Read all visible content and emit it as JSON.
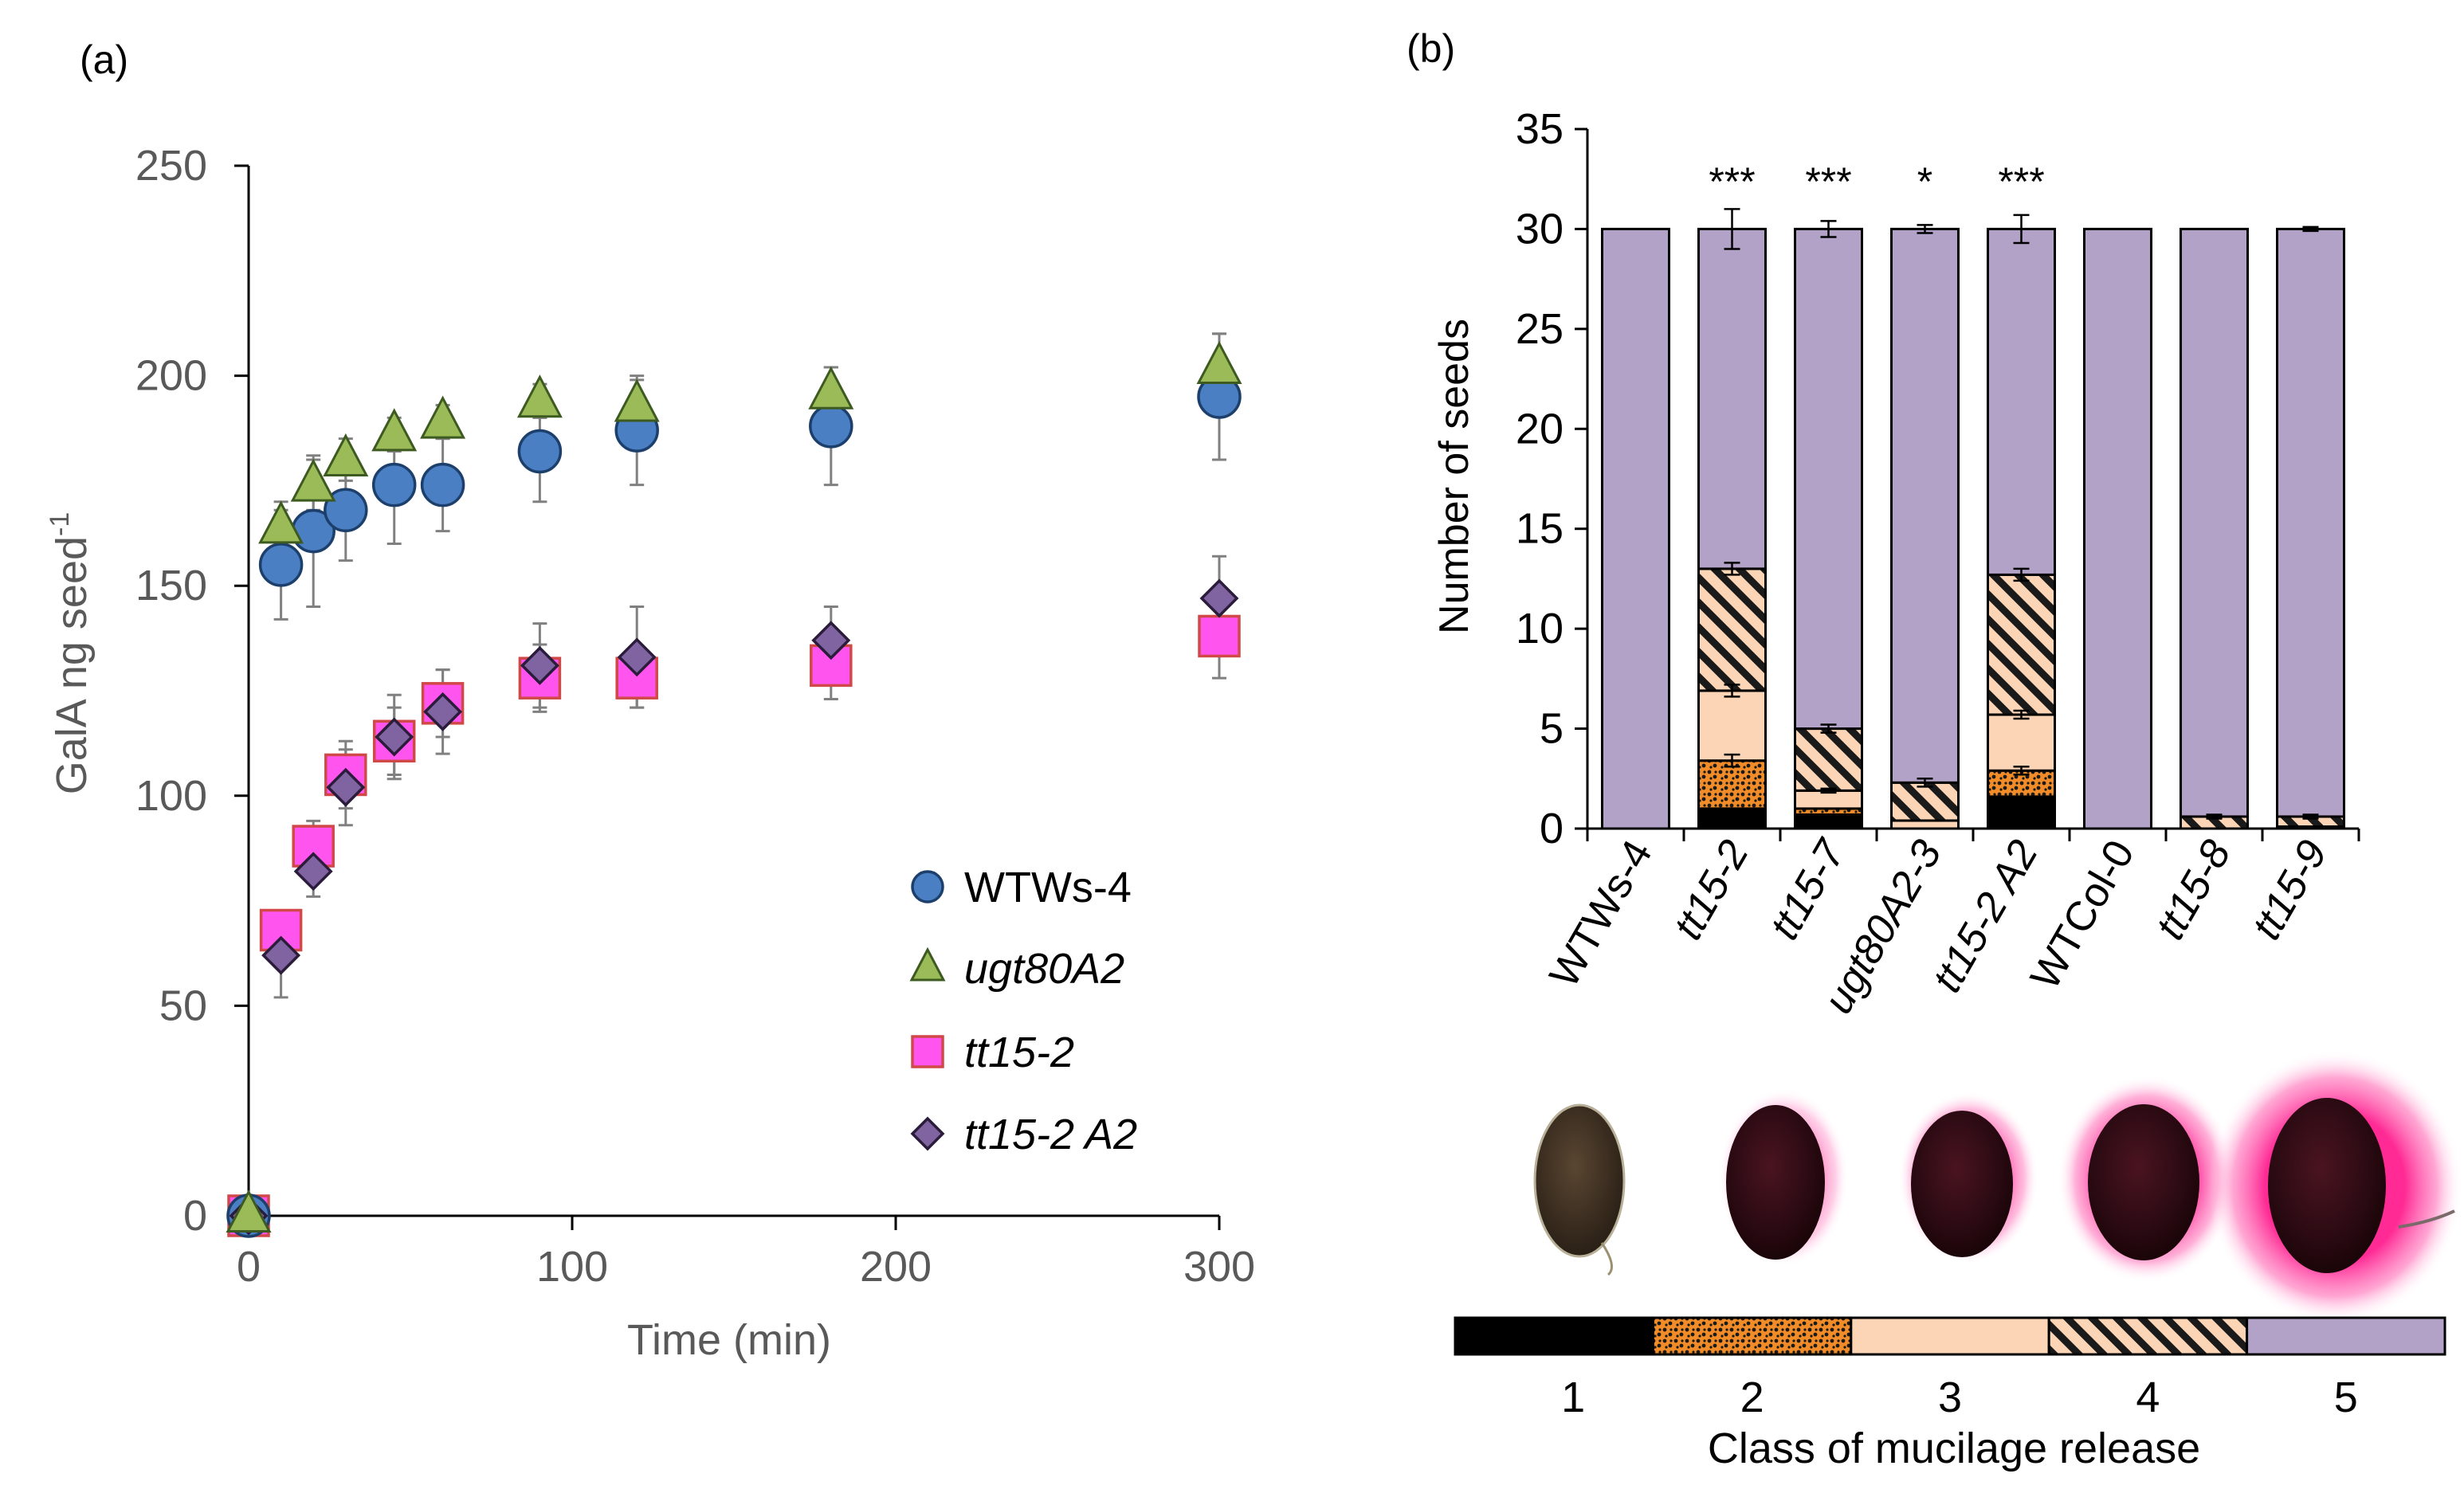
{
  "chart_data": [
    {
      "type": "scatter",
      "panel_label": "(a)",
      "xlabel": "Time (min)",
      "ylabel": "GalA ng seed",
      "ylabel_superscript": "-1",
      "xlim": [
        0,
        300
      ],
      "ylim": [
        0,
        250
      ],
      "xticks": [
        "0",
        "100",
        "200",
        "300"
      ],
      "yticks": [
        "0",
        "50",
        "100",
        "150",
        "200",
        "250"
      ],
      "legend_position": "bottom-right",
      "series": [
        {
          "name": "WTWs-4",
          "italic": false,
          "marker": "circle",
          "fill": "#4a7fc4",
          "stroke": "#1c3f6b",
          "points": [
            {
              "x": 0,
              "y": 0,
              "err": 0
            },
            {
              "x": 10,
              "y": 155,
              "err": 13
            },
            {
              "x": 20,
              "y": 163,
              "err": 18
            },
            {
              "x": 30,
              "y": 168,
              "err": 12
            },
            {
              "x": 45,
              "y": 174,
              "err": 14
            },
            {
              "x": 60,
              "y": 174,
              "err": 11
            },
            {
              "x": 90,
              "y": 182,
              "err": 12
            },
            {
              "x": 120,
              "y": 187,
              "err": 13
            },
            {
              "x": 180,
              "y": 188,
              "err": 14
            },
            {
              "x": 300,
              "y": 195,
              "err": 15
            }
          ]
        },
        {
          "name": "ugt80A2",
          "italic": true,
          "marker": "triangle",
          "fill": "#9bbb59",
          "stroke": "#3d5a20",
          "points": [
            {
              "x": 0,
              "y": 0,
              "err": 0
            },
            {
              "x": 10,
              "y": 164,
              "err": 6
            },
            {
              "x": 20,
              "y": 174,
              "err": 6
            },
            {
              "x": 30,
              "y": 180,
              "err": 5
            },
            {
              "x": 45,
              "y": 186,
              "err": 4
            },
            {
              "x": 60,
              "y": 189,
              "err": 4
            },
            {
              "x": 90,
              "y": 194,
              "err": 4
            },
            {
              "x": 120,
              "y": 193,
              "err": 6
            },
            {
              "x": 180,
              "y": 196,
              "err": 6
            },
            {
              "x": 300,
              "y": 202,
              "err": 8
            }
          ]
        },
        {
          "name": "tt15-2",
          "italic": true,
          "marker": "square",
          "fill": "#ff55ee",
          "stroke": "#d04848",
          "points": [
            {
              "x": 0,
              "y": 0,
              "err": 0
            },
            {
              "x": 10,
              "y": 68,
              "err": 0
            },
            {
              "x": 20,
              "y": 88,
              "err": 6
            },
            {
              "x": 30,
              "y": 105,
              "err": 8
            },
            {
              "x": 45,
              "y": 113,
              "err": 8
            },
            {
              "x": 60,
              "y": 122,
              "err": 8
            },
            {
              "x": 90,
              "y": 128,
              "err": 8
            },
            {
              "x": 120,
              "y": 128,
              "err": 7
            },
            {
              "x": 180,
              "y": 131,
              "err": 8
            },
            {
              "x": 300,
              "y": 138,
              "err": 10
            }
          ]
        },
        {
          "name": "tt15-2 A2",
          "italic": true,
          "marker": "diamond",
          "fill": "#8064a2",
          "stroke": "#2a1c3a",
          "points": [
            {
              "x": 0,
              "y": 0,
              "err": 0
            },
            {
              "x": 10,
              "y": 62,
              "err": 10
            },
            {
              "x": 20,
              "y": 82,
              "err": 6
            },
            {
              "x": 30,
              "y": 102,
              "err": 9
            },
            {
              "x": 45,
              "y": 114,
              "err": 10
            },
            {
              "x": 60,
              "y": 120,
              "err": 10
            },
            {
              "x": 90,
              "y": 131,
              "err": 10
            },
            {
              "x": 120,
              "y": 133,
              "err": 12
            },
            {
              "x": 180,
              "y": 137,
              "err": 8
            },
            {
              "x": 300,
              "y": 147,
              "err": 10
            }
          ]
        }
      ]
    },
    {
      "type": "bar",
      "stacked": true,
      "panel_label": "(b)",
      "ylabel": "Number of seeds",
      "ylim": [
        0,
        35
      ],
      "yticks": [
        "0",
        "5",
        "10",
        "15",
        "20",
        "25",
        "30",
        "35"
      ],
      "categories": [
        "WTWs-4",
        "tt15-2",
        "tt15-7",
        "ugt80A2-3",
        "tt15-2 A2",
        "WTCol-0",
        "tt15-8",
        "tt15-9"
      ],
      "category_italic": [
        false,
        true,
        true,
        true,
        true,
        false,
        true,
        true
      ],
      "significance": [
        "",
        "***",
        "***",
        "*",
        "***",
        "",
        "",
        ""
      ],
      "total_error": [
        0,
        1.0,
        0.4,
        0.2,
        0.7,
        0,
        0,
        0.1
      ],
      "series": [
        {
          "name": "1",
          "fill": "#000000",
          "pattern": "solid",
          "values": [
            0,
            1.0,
            0.7,
            0,
            1.6,
            0,
            0,
            0
          ]
        },
        {
          "name": "2",
          "fill": "#f28c28",
          "pattern": "dots",
          "values": [
            0,
            2.4,
            0.3,
            0,
            1.3,
            0,
            0,
            0
          ]
        },
        {
          "name": "3",
          "fill": "#fbd5b5",
          "pattern": "solid",
          "values": [
            0,
            3.5,
            0.9,
            0.4,
            2.8,
            0,
            0,
            0.1
          ]
        },
        {
          "name": "4",
          "fill": "#fbd5b5",
          "pattern": "hatch",
          "values": [
            0,
            6.1,
            3.1,
            1.9,
            7.0,
            0,
            0.6,
            0.5
          ]
        },
        {
          "name": "5",
          "fill": "#b3a2c7",
          "pattern": "solid",
          "values": [
            30,
            17.0,
            25.0,
            27.7,
            17.3,
            30,
            29.4,
            29.4
          ]
        }
      ],
      "layer_errors": [
        [
          0,
          0,
          0,
          0,
          0,
          0,
          0,
          0
        ],
        [
          0,
          0.3,
          0,
          0,
          0.2,
          0,
          0,
          0
        ],
        [
          0,
          0.3,
          0.1,
          0,
          0.2,
          0,
          0,
          0
        ],
        [
          0,
          0.3,
          0.2,
          0.2,
          0.3,
          0,
          0.1,
          0.1
        ],
        [
          0,
          1.0,
          0.4,
          0.2,
          0.7,
          0,
          0,
          0.1
        ]
      ]
    },
    {
      "type": "legend",
      "title": "Class of mucilage release",
      "classes": [
        "1",
        "2",
        "3",
        "4",
        "5"
      ]
    }
  ]
}
